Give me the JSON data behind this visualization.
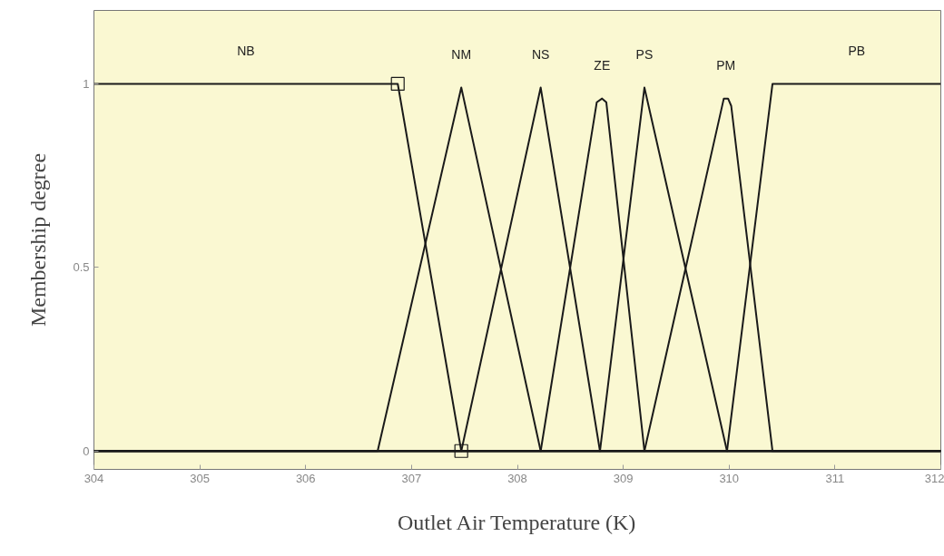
{
  "chart_data": {
    "type": "line",
    "xlabel": "Outlet Air Temperature (K)",
    "ylabel": "Membership degree",
    "xlim": [
      304,
      312
    ],
    "ylim": [
      -0.05,
      1.2
    ],
    "xticks": [
      304,
      305,
      306,
      307,
      308,
      309,
      310,
      311,
      312
    ],
    "yticks": [
      0,
      0.5,
      1
    ],
    "grid": false,
    "marker": "none",
    "line_style": "solid",
    "series": [
      {
        "name": "NB",
        "color": "#1a1a1a",
        "x": [
          304,
          306.87,
          307.47,
          312
        ],
        "values": [
          1,
          1,
          0,
          0
        ]
      },
      {
        "name": "NM",
        "color": "#1a1a1a",
        "x": [
          304,
          306.68,
          307.47,
          308.22,
          312
        ],
        "values": [
          0,
          0,
          0.99,
          0,
          0
        ]
      },
      {
        "name": "NS",
        "color": "#1a1a1a",
        "x": [
          304,
          307.47,
          308.22,
          308.78,
          312
        ],
        "values": [
          0,
          0,
          0.99,
          0,
          0
        ]
      },
      {
        "name": "ZE",
        "color": "#1a1a1a",
        "x": [
          304,
          308.22,
          308.75,
          308.8,
          308.84,
          309.2,
          312
        ],
        "values": [
          0,
          0,
          0.95,
          0.96,
          0.95,
          0,
          0
        ]
      },
      {
        "name": "PS",
        "color": "#1a1a1a",
        "x": [
          304,
          308.78,
          309.2,
          309.98,
          312
        ],
        "values": [
          0,
          0,
          0.99,
          0,
          0
        ]
      },
      {
        "name": "PM",
        "color": "#1a1a1a",
        "x": [
          304,
          309.2,
          309.95,
          309.99,
          310.02,
          310.41,
          312
        ],
        "values": [
          0,
          0,
          0.96,
          0.96,
          0.94,
          0,
          0
        ]
      },
      {
        "name": "PB",
        "color": "#1a1a1a",
        "x": [
          304,
          309.98,
          310.41,
          312
        ],
        "values": [
          0,
          0,
          1,
          1
        ]
      },
      {
        "type": "scatter",
        "marker": "square",
        "color": "#1a1a1a",
        "x": [
          306.87,
          307.47
        ],
        "values": [
          1,
          0
        ]
      }
    ]
  }
}
